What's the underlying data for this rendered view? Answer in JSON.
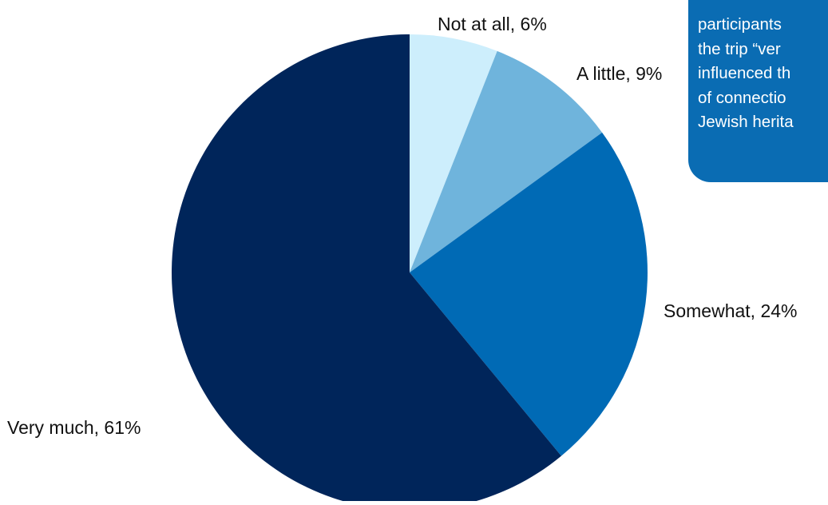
{
  "chart_data": {
    "type": "pie",
    "title": "",
    "categories": [
      "Not at all",
      "A little",
      "Somewhat",
      "Very much"
    ],
    "values": [
      6,
      9,
      24,
      61
    ],
    "unit": "%",
    "labels": [
      "Not at all, 6%",
      "A little, 9%",
      "Somewhat, 24%",
      "Very much, 61%"
    ],
    "start": "12 o'clock",
    "direction": "clockwise",
    "legend": "none (direct labels)"
  },
  "colors": {
    "not_at_all": "#cdeefc",
    "a_little": "#6fb4dc",
    "somewhat": "#006ab5",
    "very_much": "#00255a",
    "callout_bg": "#0a6cb3"
  },
  "callout": {
    "lines": [
      "participants",
      "the trip “ver",
      "influenced th",
      "of connectio",
      "Jewish herita"
    ]
  }
}
